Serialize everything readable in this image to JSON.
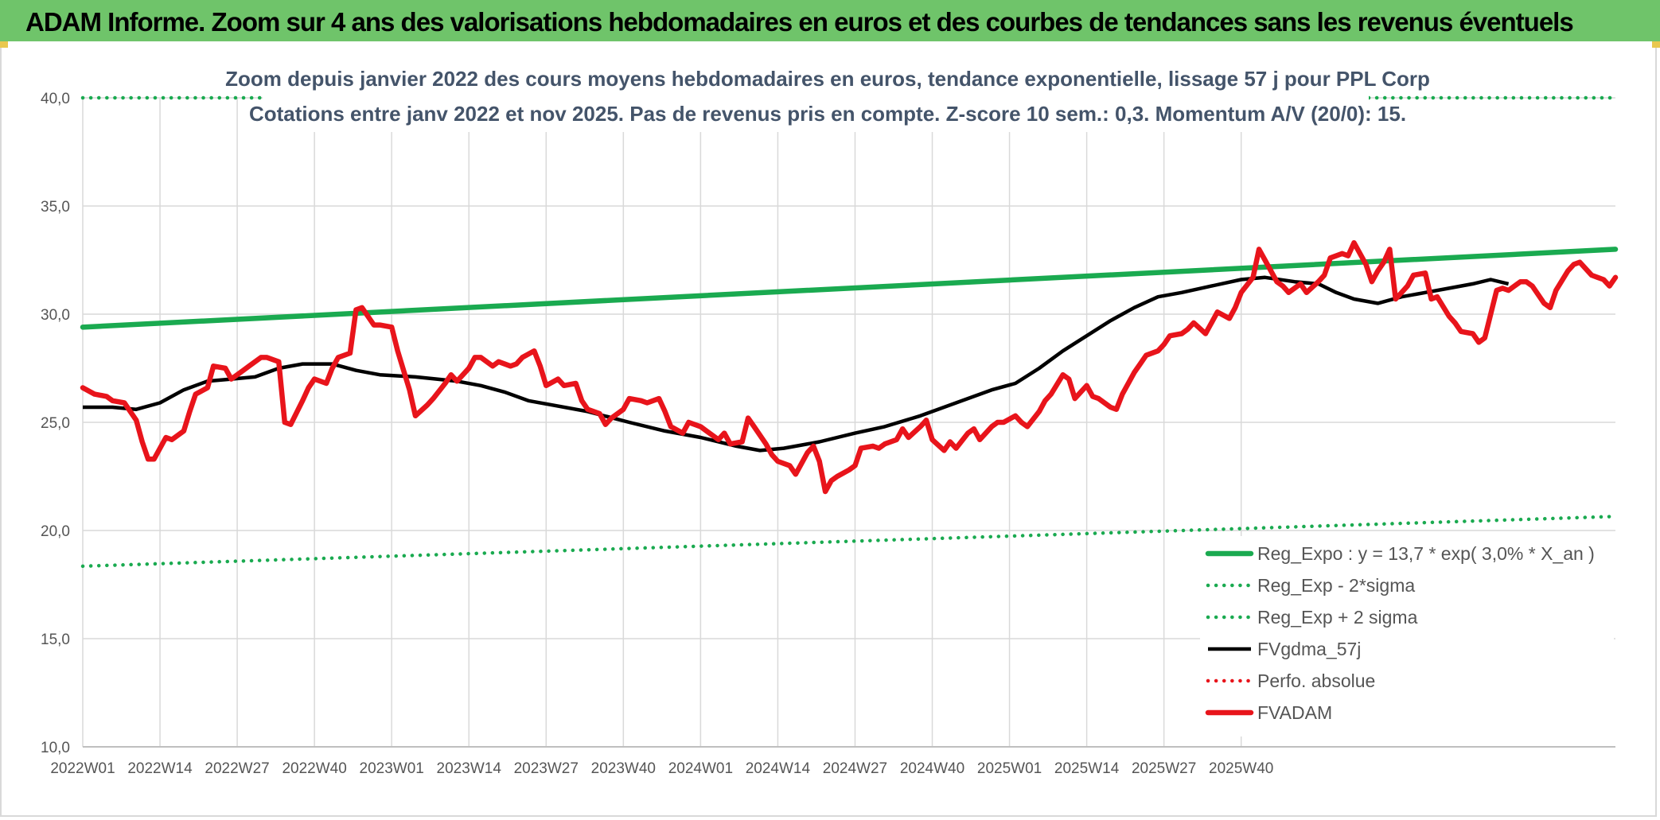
{
  "header": {
    "title": "ADAM Informe. Zoom sur 4 ans des valorisations hebdomadaires en euros et des courbes de tendances sans les revenus éventuels"
  },
  "chart_data": {
    "type": "line",
    "title": "Zoom depuis janvier 2022 des cours moyens hebdomadaires en euros, tendance exponentielle, lissage 57 j pour PPL Corp",
    "subtitle": "Cotations entre janv 2022 et nov 2025. Pas de revenus pris en compte. Z-score 10 sem.: 0,3. Momentum A/V (20/0): 15.",
    "ylim": [
      10,
      40
    ],
    "yticks": [
      "10,0",
      "15,0",
      "20,0",
      "25,0",
      "30,0",
      "35,0",
      "40,0"
    ],
    "xticks": [
      "2022W01",
      "2022W14",
      "2022W27",
      "2022W40",
      "2023W01",
      "2023W14",
      "2023W27",
      "2023W40",
      "2024W01",
      "2024W14",
      "2024W27",
      "2024W40",
      "2025W01",
      "2025W14",
      "2025W27",
      "2025W40"
    ],
    "x_count": 205,
    "grid": true,
    "legend_position": "bottom-right",
    "series": [
      {
        "name": "Reg_Expo : y = 13,7 * exp( 3,0% *  X_an )",
        "style": "solid-thick",
        "color": "#1aaa50",
        "start": 29.4,
        "end": 33.0
      },
      {
        "name": "Reg_Exp - 2*sigma",
        "style": "dotted",
        "color": "#1aaa50",
        "start": 18.35,
        "end": 20.65
      },
      {
        "name": "Reg_Exp + 2 sigma",
        "style": "dotted",
        "color": "#1aaa50",
        "start": 40.0,
        "end": 40.0
      },
      {
        "name": "FVgdma_57j",
        "style": "solid",
        "color": "#000000",
        "points": [
          [
            0,
            25.7
          ],
          [
            5,
            25.7
          ],
          [
            9,
            25.6
          ],
          [
            13,
            25.9
          ],
          [
            17,
            26.5
          ],
          [
            21,
            26.9
          ],
          [
            25,
            27.0
          ],
          [
            29,
            27.1
          ],
          [
            33,
            27.5
          ],
          [
            37,
            27.7
          ],
          [
            42,
            27.7
          ],
          [
            46,
            27.4
          ],
          [
            50,
            27.2
          ],
          [
            56,
            27.1
          ],
          [
            63,
            26.9
          ],
          [
            67,
            26.7
          ],
          [
            71,
            26.4
          ],
          [
            75,
            26.0
          ],
          [
            79,
            25.8
          ],
          [
            85,
            25.5
          ],
          [
            92,
            25.0
          ],
          [
            98,
            24.6
          ],
          [
            104,
            24.3
          ],
          [
            110,
            23.9
          ],
          [
            114,
            23.7
          ],
          [
            118,
            23.8
          ],
          [
            124,
            24.1
          ],
          [
            130,
            24.5
          ],
          [
            135,
            24.8
          ],
          [
            141,
            25.3
          ],
          [
            147,
            25.9
          ],
          [
            153,
            26.5
          ],
          [
            157,
            26.8
          ],
          [
            161,
            27.5
          ],
          [
            165,
            28.3
          ],
          [
            169,
            29.0
          ],
          [
            173,
            29.7
          ],
          [
            177,
            30.3
          ],
          [
            181,
            30.8
          ],
          [
            185,
            31.0
          ],
          [
            190,
            31.3
          ],
          [
            195,
            31.6
          ],
          [
            199,
            31.7
          ],
          [
            204,
            31.5
          ],
          [
            208,
            31.4
          ],
          [
            211,
            31.0
          ],
          [
            214,
            30.7
          ],
          [
            218,
            30.5
          ],
          [
            222,
            30.8
          ],
          [
            226,
            31.0
          ],
          [
            230,
            31.2
          ],
          [
            234,
            31.4
          ],
          [
            237,
            31.6
          ],
          [
            240,
            31.4
          ]
        ]
      },
      {
        "name": "Perfo. absolue",
        "style": "dotted",
        "color": "#e8141b",
        "points": []
      },
      {
        "name": "FVADAM",
        "style": "solid-thick",
        "color": "#e8141b",
        "points": [
          [
            0,
            26.6
          ],
          [
            2,
            26.3
          ],
          [
            4,
            26.2
          ],
          [
            5,
            26.0
          ],
          [
            7,
            25.9
          ],
          [
            9,
            25.1
          ],
          [
            10,
            24.1
          ],
          [
            11,
            23.3
          ],
          [
            12,
            23.3
          ],
          [
            14,
            24.3
          ],
          [
            15,
            24.2
          ],
          [
            17,
            24.6
          ],
          [
            18,
            25.5
          ],
          [
            19,
            26.3
          ],
          [
            21,
            26.6
          ],
          [
            22,
            27.6
          ],
          [
            24,
            27.5
          ],
          [
            25,
            27.0
          ],
          [
            27,
            27.4
          ],
          [
            28,
            27.6
          ],
          [
            30,
            28.0
          ],
          [
            31,
            28.0
          ],
          [
            33,
            27.8
          ],
          [
            34,
            25.0
          ],
          [
            35,
            24.9
          ],
          [
            37,
            26.0
          ],
          [
            38,
            26.6
          ],
          [
            39,
            27.0
          ],
          [
            41,
            26.8
          ],
          [
            42,
            27.5
          ],
          [
            43,
            28.0
          ],
          [
            45,
            28.2
          ],
          [
            46,
            30.2
          ],
          [
            47,
            30.3
          ],
          [
            49,
            29.5
          ],
          [
            50,
            29.5
          ],
          [
            52,
            29.4
          ],
          [
            53,
            28.3
          ],
          [
            55,
            26.5
          ],
          [
            56,
            25.3
          ],
          [
            58,
            25.8
          ],
          [
            59,
            26.1
          ],
          [
            61,
            26.8
          ],
          [
            62,
            27.2
          ],
          [
            63,
            26.9
          ],
          [
            65,
            27.5
          ],
          [
            66,
            28.0
          ],
          [
            67,
            28.0
          ],
          [
            69,
            27.6
          ],
          [
            70,
            27.8
          ],
          [
            72,
            27.6
          ],
          [
            73,
            27.7
          ],
          [
            74,
            28.0
          ],
          [
            76,
            28.3
          ],
          [
            77,
            27.6
          ],
          [
            78,
            26.7
          ],
          [
            80,
            27.0
          ],
          [
            81,
            26.7
          ],
          [
            83,
            26.8
          ],
          [
            84,
            26.0
          ],
          [
            85,
            25.6
          ],
          [
            87,
            25.4
          ],
          [
            88,
            24.9
          ],
          [
            89,
            25.2
          ],
          [
            91,
            25.6
          ],
          [
            92,
            26.1
          ],
          [
            94,
            26.0
          ],
          [
            95,
            25.9
          ],
          [
            97,
            26.1
          ],
          [
            98,
            25.5
          ],
          [
            99,
            24.8
          ],
          [
            101,
            24.5
          ],
          [
            102,
            25.0
          ],
          [
            104,
            24.8
          ],
          [
            105,
            24.6
          ],
          [
            107,
            24.2
          ],
          [
            108,
            24.5
          ],
          [
            109,
            24.0
          ],
          [
            111,
            24.1
          ],
          [
            112,
            25.2
          ],
          [
            113,
            24.8
          ],
          [
            115,
            24.0
          ],
          [
            116,
            23.5
          ],
          [
            117,
            23.2
          ],
          [
            119,
            23.0
          ],
          [
            120,
            22.6
          ],
          [
            122,
            23.6
          ],
          [
            123,
            23.9
          ],
          [
            124,
            23.2
          ],
          [
            125,
            21.8
          ],
          [
            126,
            22.3
          ],
          [
            127,
            22.5
          ],
          [
            129,
            22.8
          ],
          [
            130,
            23.0
          ],
          [
            131,
            23.8
          ],
          [
            133,
            23.9
          ],
          [
            134,
            23.8
          ],
          [
            135,
            24.0
          ],
          [
            137,
            24.2
          ],
          [
            138,
            24.7
          ],
          [
            139,
            24.3
          ],
          [
            141,
            24.8
          ],
          [
            142,
            25.1
          ],
          [
            143,
            24.2
          ],
          [
            145,
            23.7
          ],
          [
            146,
            24.1
          ],
          [
            147,
            23.8
          ],
          [
            149,
            24.5
          ],
          [
            150,
            24.7
          ],
          [
            151,
            24.2
          ],
          [
            153,
            24.8
          ],
          [
            154,
            25.0
          ],
          [
            155,
            25.0
          ],
          [
            157,
            25.3
          ],
          [
            158,
            25.0
          ],
          [
            159,
            24.8
          ],
          [
            161,
            25.5
          ],
          [
            162,
            26.0
          ],
          [
            163,
            26.3
          ],
          [
            165,
            27.2
          ],
          [
            166,
            27.0
          ],
          [
            167,
            26.1
          ],
          [
            169,
            26.7
          ],
          [
            170,
            26.2
          ],
          [
            171,
            26.1
          ],
          [
            173,
            25.7
          ],
          [
            174,
            25.6
          ],
          [
            175,
            26.3
          ],
          [
            177,
            27.3
          ],
          [
            178,
            27.7
          ],
          [
            179,
            28.1
          ],
          [
            181,
            28.3
          ],
          [
            182,
            28.6
          ],
          [
            183,
            29.0
          ],
          [
            185,
            29.1
          ],
          [
            186,
            29.3
          ],
          [
            187,
            29.6
          ],
          [
            189,
            29.1
          ],
          [
            190,
            29.6
          ],
          [
            191,
            30.1
          ],
          [
            193,
            29.8
          ],
          [
            194,
            30.3
          ],
          [
            195,
            31.0
          ],
          [
            197,
            31.7
          ],
          [
            198,
            33.0
          ],
          [
            199,
            32.5
          ],
          [
            201,
            31.5
          ],
          [
            202,
            31.3
          ],
          [
            203,
            31.0
          ],
          [
            205,
            31.4
          ],
          [
            206,
            31.0
          ],
          [
            208,
            31.5
          ],
          [
            209,
            31.8
          ],
          [
            210,
            32.6
          ],
          [
            212,
            32.8
          ],
          [
            213,
            32.7
          ],
          [
            214,
            33.3
          ],
          [
            216,
            32.3
          ],
          [
            217,
            31.5
          ],
          [
            218,
            32.0
          ],
          [
            219,
            32.4
          ],
          [
            220,
            33.0
          ],
          [
            221,
            30.7
          ],
          [
            223,
            31.3
          ],
          [
            224,
            31.8
          ],
          [
            226,
            31.9
          ],
          [
            227,
            30.7
          ],
          [
            228,
            30.8
          ],
          [
            230,
            29.9
          ],
          [
            231,
            29.6
          ],
          [
            232,
            29.2
          ],
          [
            234,
            29.1
          ],
          [
            235,
            28.7
          ],
          [
            236,
            28.9
          ],
          [
            238,
            31.1
          ],
          [
            239,
            31.2
          ],
          [
            240,
            31.1
          ],
          [
            242,
            31.5
          ],
          [
            243,
            31.5
          ],
          [
            244,
            31.3
          ],
          [
            246,
            30.5
          ],
          [
            247,
            30.3
          ],
          [
            248,
            31.1
          ],
          [
            250,
            32.0
          ],
          [
            251,
            32.3
          ],
          [
            252,
            32.4
          ],
          [
            254,
            31.8
          ],
          [
            255,
            31.7
          ],
          [
            256,
            31.6
          ],
          [
            257,
            31.3
          ],
          [
            258,
            31.7
          ]
        ]
      }
    ]
  }
}
